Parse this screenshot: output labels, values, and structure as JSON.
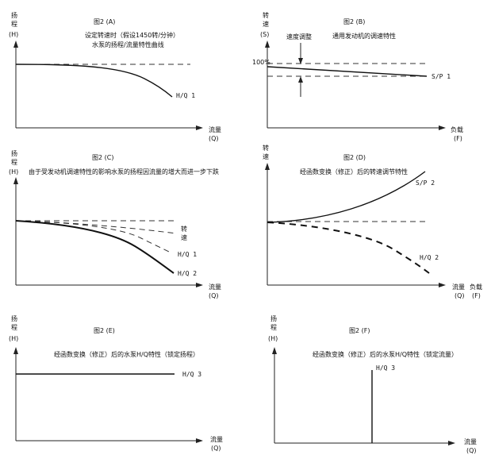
{
  "panels": {
    "a": {
      "title": "图2 (A)",
      "desc1": "设定转速时（假设1450转/分钟）",
      "desc2": "水泵的扬程/流量特性曲线",
      "y_axis": [
        "扬",
        "程",
        "(H)"
      ],
      "x_axis": [
        "流量",
        "(Q)"
      ],
      "curve_label": "H/Q 1"
    },
    "b": {
      "title": "图2 (B)",
      "desc1": "通用发动机的调速特性",
      "speed_adjust": "速度调整",
      "y_axis": [
        "转",
        "速",
        "(S)"
      ],
      "pct": "100%",
      "x_axis": [
        "负载",
        "(F)"
      ],
      "curve_label": "S/P 1"
    },
    "c": {
      "title": "图2 (C)",
      "desc1": "由于受发动机调速特性的影响水泵的扬程因流量的增大而进一步下跌",
      "y_axis": [
        "扬",
        "程",
        "(H)"
      ],
      "x_axis": [
        "流量",
        "(Q)"
      ],
      "label_speed": [
        "转",
        "速"
      ],
      "label_hq1": "H/Q 1",
      "label_hq2": "H/Q 2"
    },
    "d": {
      "title": "图2 (D)",
      "desc1": "经函数变换（修正）后的转速调节特性",
      "y_axis": [
        "转",
        "速"
      ],
      "label_sp2": "S/P 2",
      "label_hq2": "H/Q 2",
      "x_axis_flow": [
        "流量",
        "(Q)"
      ],
      "x_axis_load": [
        "负载",
        "(F)"
      ]
    },
    "e": {
      "title": "图2 (E)",
      "desc1": "经函数变换（修正）后的水泵H/Q特性（锁定扬程）",
      "y_axis": [
        "扬",
        "程",
        "(H)"
      ],
      "x_axis": [
        "流量",
        "(Q)"
      ],
      "curve_label": "H/Q 3"
    },
    "f": {
      "title": "图2 (F)",
      "desc1": "经函数变换（修正）后的水泵H/Q特性（锁定流量）",
      "y_axis": [
        "扬",
        "程",
        "(H)"
      ],
      "x_axis": [
        "流量",
        "(Q)"
      ],
      "curve_label": "H/Q 3"
    }
  }
}
